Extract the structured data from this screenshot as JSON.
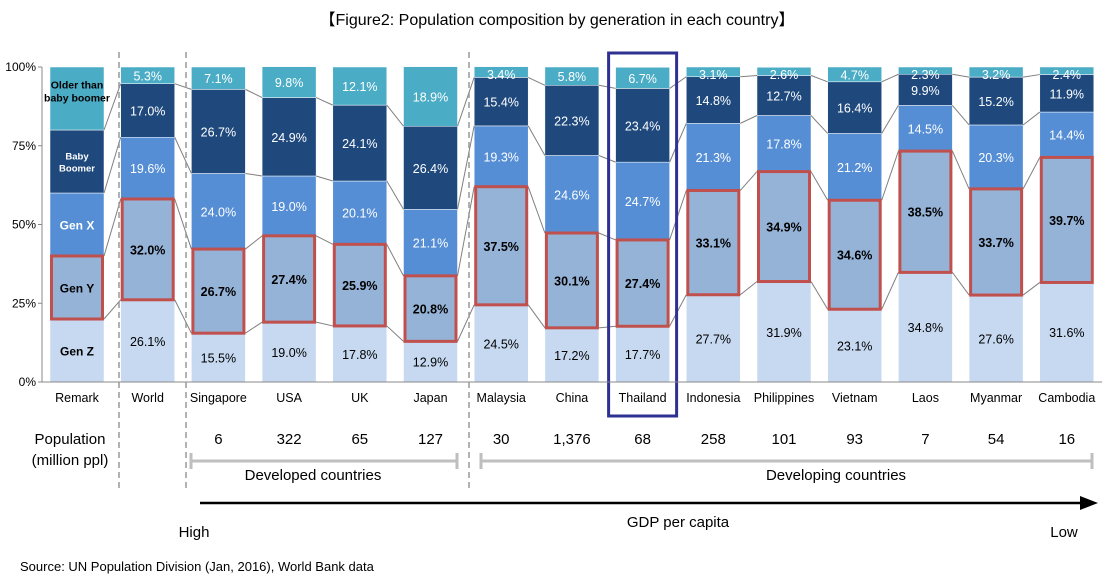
{
  "chart_data": {
    "type": "bar",
    "stacked": true,
    "percent": true,
    "title": "【Figure2: Population composition by generation in each country】",
    "categories": [
      "Remark",
      "World",
      "Singapore",
      "USA",
      "UK",
      "Japan",
      "Malaysia",
      "China",
      "Thailand",
      "Indonesia",
      "Philippines",
      "Vietnam",
      "Laos",
      "Myanmar",
      "Cambodia"
    ],
    "ylim": [
      0,
      100
    ],
    "y_ticks": [
      "0%",
      "25%",
      "50%",
      "75%",
      "100%"
    ],
    "y_tick_values": [
      0,
      25,
      50,
      75,
      100
    ],
    "series": [
      {
        "name": "Gen Z",
        "color": "#c6d9f1",
        "values": [
          null,
          26.1,
          15.5,
          19.0,
          17.8,
          12.9,
          24.5,
          17.2,
          17.7,
          27.7,
          31.9,
          23.1,
          34.8,
          27.6,
          31.6
        ]
      },
      {
        "name": "Gen Y",
        "color": "#95b3d7",
        "values": [
          null,
          32.0,
          26.7,
          27.4,
          25.9,
          20.8,
          37.5,
          30.1,
          27.4,
          33.1,
          34.9,
          34.6,
          38.5,
          33.7,
          39.7
        ]
      },
      {
        "name": "Gen X",
        "color": "#558ed5",
        "values": [
          null,
          19.6,
          24.0,
          19.0,
          20.1,
          21.1,
          19.3,
          24.6,
          24.7,
          21.3,
          17.8,
          21.2,
          14.5,
          20.3,
          14.4
        ]
      },
      {
        "name": "Baby Boomer",
        "color": "#1f497d",
        "values": [
          null,
          17.0,
          26.7,
          24.9,
          24.1,
          26.4,
          15.4,
          22.3,
          23.4,
          14.8,
          12.7,
          16.4,
          9.9,
          15.2,
          11.9
        ]
      },
      {
        "name": "Older than baby boomer",
        "color": "#4bacc6",
        "values": [
          null,
          5.3,
          7.1,
          9.8,
          12.1,
          18.9,
          3.4,
          5.8,
          6.7,
          3.1,
          2.6,
          4.7,
          2.3,
          3.2,
          2.4
        ]
      }
    ],
    "data_labels": [
      [
        null,
        "26.1%",
        "15.5%",
        "19.0%",
        "17.8%",
        "12.9%",
        "24.5%",
        "17.2%",
        "17.7%",
        "27.7%",
        "31.9%",
        "23.1%",
        "34.8%",
        "27.6%",
        "31.6%"
      ],
      [
        null,
        "32.0%",
        "26.7%",
        "27.4%",
        "25.9%",
        "20.8%",
        "37.5%",
        "30.1%",
        "27.4%",
        "33.1%",
        "34.9%",
        "34.6%",
        "38.5%",
        "33.7%",
        "39.7%"
      ],
      [
        null,
        "19.6%",
        "24.0%",
        "19.0%",
        "20.1%",
        "21.1%",
        "19.3%",
        "24.6%",
        "24.7%",
        "21.3%",
        "17.8%",
        "21.2%",
        "14.5%",
        "20.3%",
        "14.4%"
      ],
      [
        null,
        "17.0%",
        "26.7%",
        "24.9%",
        "24.1%",
        "26.4%",
        "15.4%",
        "22.3%",
        "23.4%",
        "14.8%",
        "12.7%",
        "16.4%",
        "9.9%",
        "15.2%",
        "11.9%"
      ],
      [
        null,
        "5.3%",
        "7.1%",
        "9.8%",
        "12.1%",
        "18.9%",
        "3.4%",
        "5.8%",
        "6.7%",
        "3.1%",
        "2.6%",
        "4.7%",
        "2.3%",
        "3.2%",
        "2.4%"
      ]
    ],
    "remark_column": {
      "segments": [
        20,
        20,
        20,
        20,
        20
      ],
      "labels": [
        "Gen Z",
        "Gen Y",
        "Gen X",
        "Baby Boomer",
        "Older than baby boomer"
      ]
    },
    "highlight_series": "Gen Y",
    "highlight_category": "Thailand",
    "population_label": "Population\n(million ppl)",
    "population": [
      "",
      "",
      "6",
      "322",
      "65",
      "127",
      "30",
      "1,376",
      "68",
      "258",
      "101",
      "93",
      "7",
      "54",
      "16"
    ],
    "group_labels": {
      "developed": "Developed countries",
      "developing": "Developing countries"
    },
    "gdp_axis": {
      "label": "GDP per capita",
      "high": "High",
      "low": "Low"
    },
    "source": "Source: UN  Population Division  (Jan, 2016), World Bank data",
    "colors": {
      "highlight_box": "#c0504d",
      "thailand_frame": "#2e3192",
      "connector": "#7f7f7f",
      "group_bracket": "#bfbfbf"
    }
  }
}
